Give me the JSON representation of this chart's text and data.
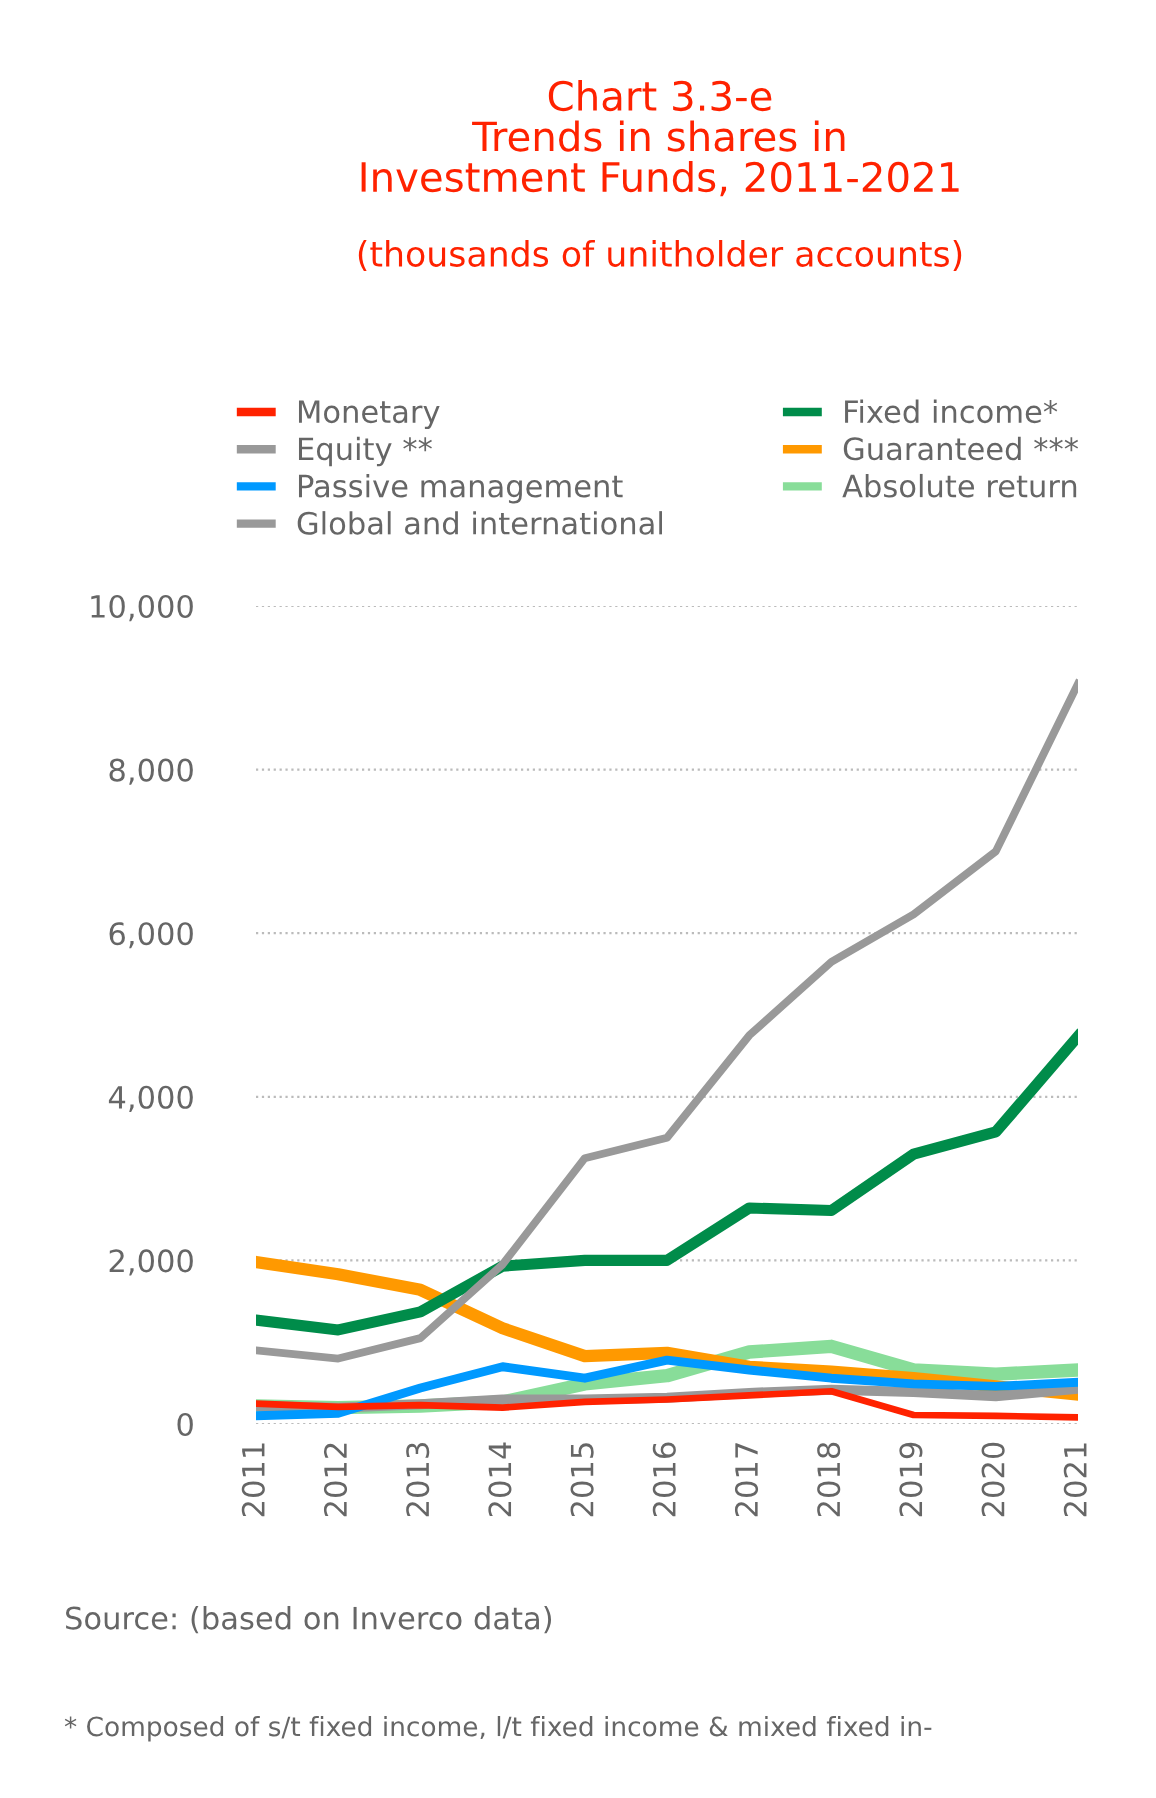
{
  "chart_data": {
    "type": "line",
    "title": "Chart 3.3-e\nTrends in shares in\nInvestment Funds, 2011-2021",
    "subtitle": "(thousands of unitholder accounts)",
    "categories": [
      "2011",
      "2012",
      "2013",
      "2014",
      "2015",
      "2016",
      "2017",
      "2018",
      "2019",
      "2020",
      "2021"
    ],
    "series": [
      {
        "name": "Monetary",
        "color": "#ff2200",
        "values": [
          250,
          210,
          230,
          200,
          270,
          300,
          350,
          400,
          110,
          100,
          80
        ]
      },
      {
        "name": "Equity **",
        "color": "#999999",
        "values": [
          900,
          800,
          1050,
          1950,
          3250,
          3500,
          4750,
          5650,
          6230,
          7000,
          9050
        ]
      },
      {
        "name": "Passive management",
        "color": "#0099ff",
        "values": [
          100,
          130,
          440,
          700,
          560,
          780,
          660,
          560,
          490,
          460,
          510
        ]
      },
      {
        "name": "Global and international",
        "color": "#999999",
        "values": [
          220,
          200,
          240,
          300,
          300,
          320,
          380,
          420,
          390,
          340,
          430
        ]
      },
      {
        "name": "Fixed income*",
        "color": "#008c4a",
        "values": [
          1270,
          1150,
          1370,
          1930,
          2000,
          2000,
          2640,
          2610,
          3300,
          3570,
          4740
        ]
      },
      {
        "name": "Guaranteed ***",
        "color": "#ff9900",
        "values": [
          1980,
          1830,
          1640,
          1170,
          830,
          870,
          700,
          640,
          560,
          460,
          360
        ]
      },
      {
        "name": "Absolute return",
        "color": "#88dd99",
        "values": [
          220,
          200,
          220,
          270,
          490,
          590,
          880,
          950,
          660,
          610,
          660
        ]
      }
    ],
    "ylim": [
      0,
      10000
    ],
    "yticks": [
      {
        "value": 0,
        "label": "0"
      },
      {
        "value": 2000,
        "label": "2,000"
      },
      {
        "value": 4000,
        "label": "4,000"
      },
      {
        "value": 6000,
        "label": "6,000"
      },
      {
        "value": 8000,
        "label": "8,000"
      },
      {
        "value": 10000,
        "label": "10,000"
      }
    ],
    "grid": "y",
    "legend": "top",
    "marker": "none",
    "line_style": "solid",
    "annotations": [
      "Source: (based on Inverco data)",
      "* Composed of s/t fixed income, l/t fixed income & mixed fixed in-"
    ]
  }
}
